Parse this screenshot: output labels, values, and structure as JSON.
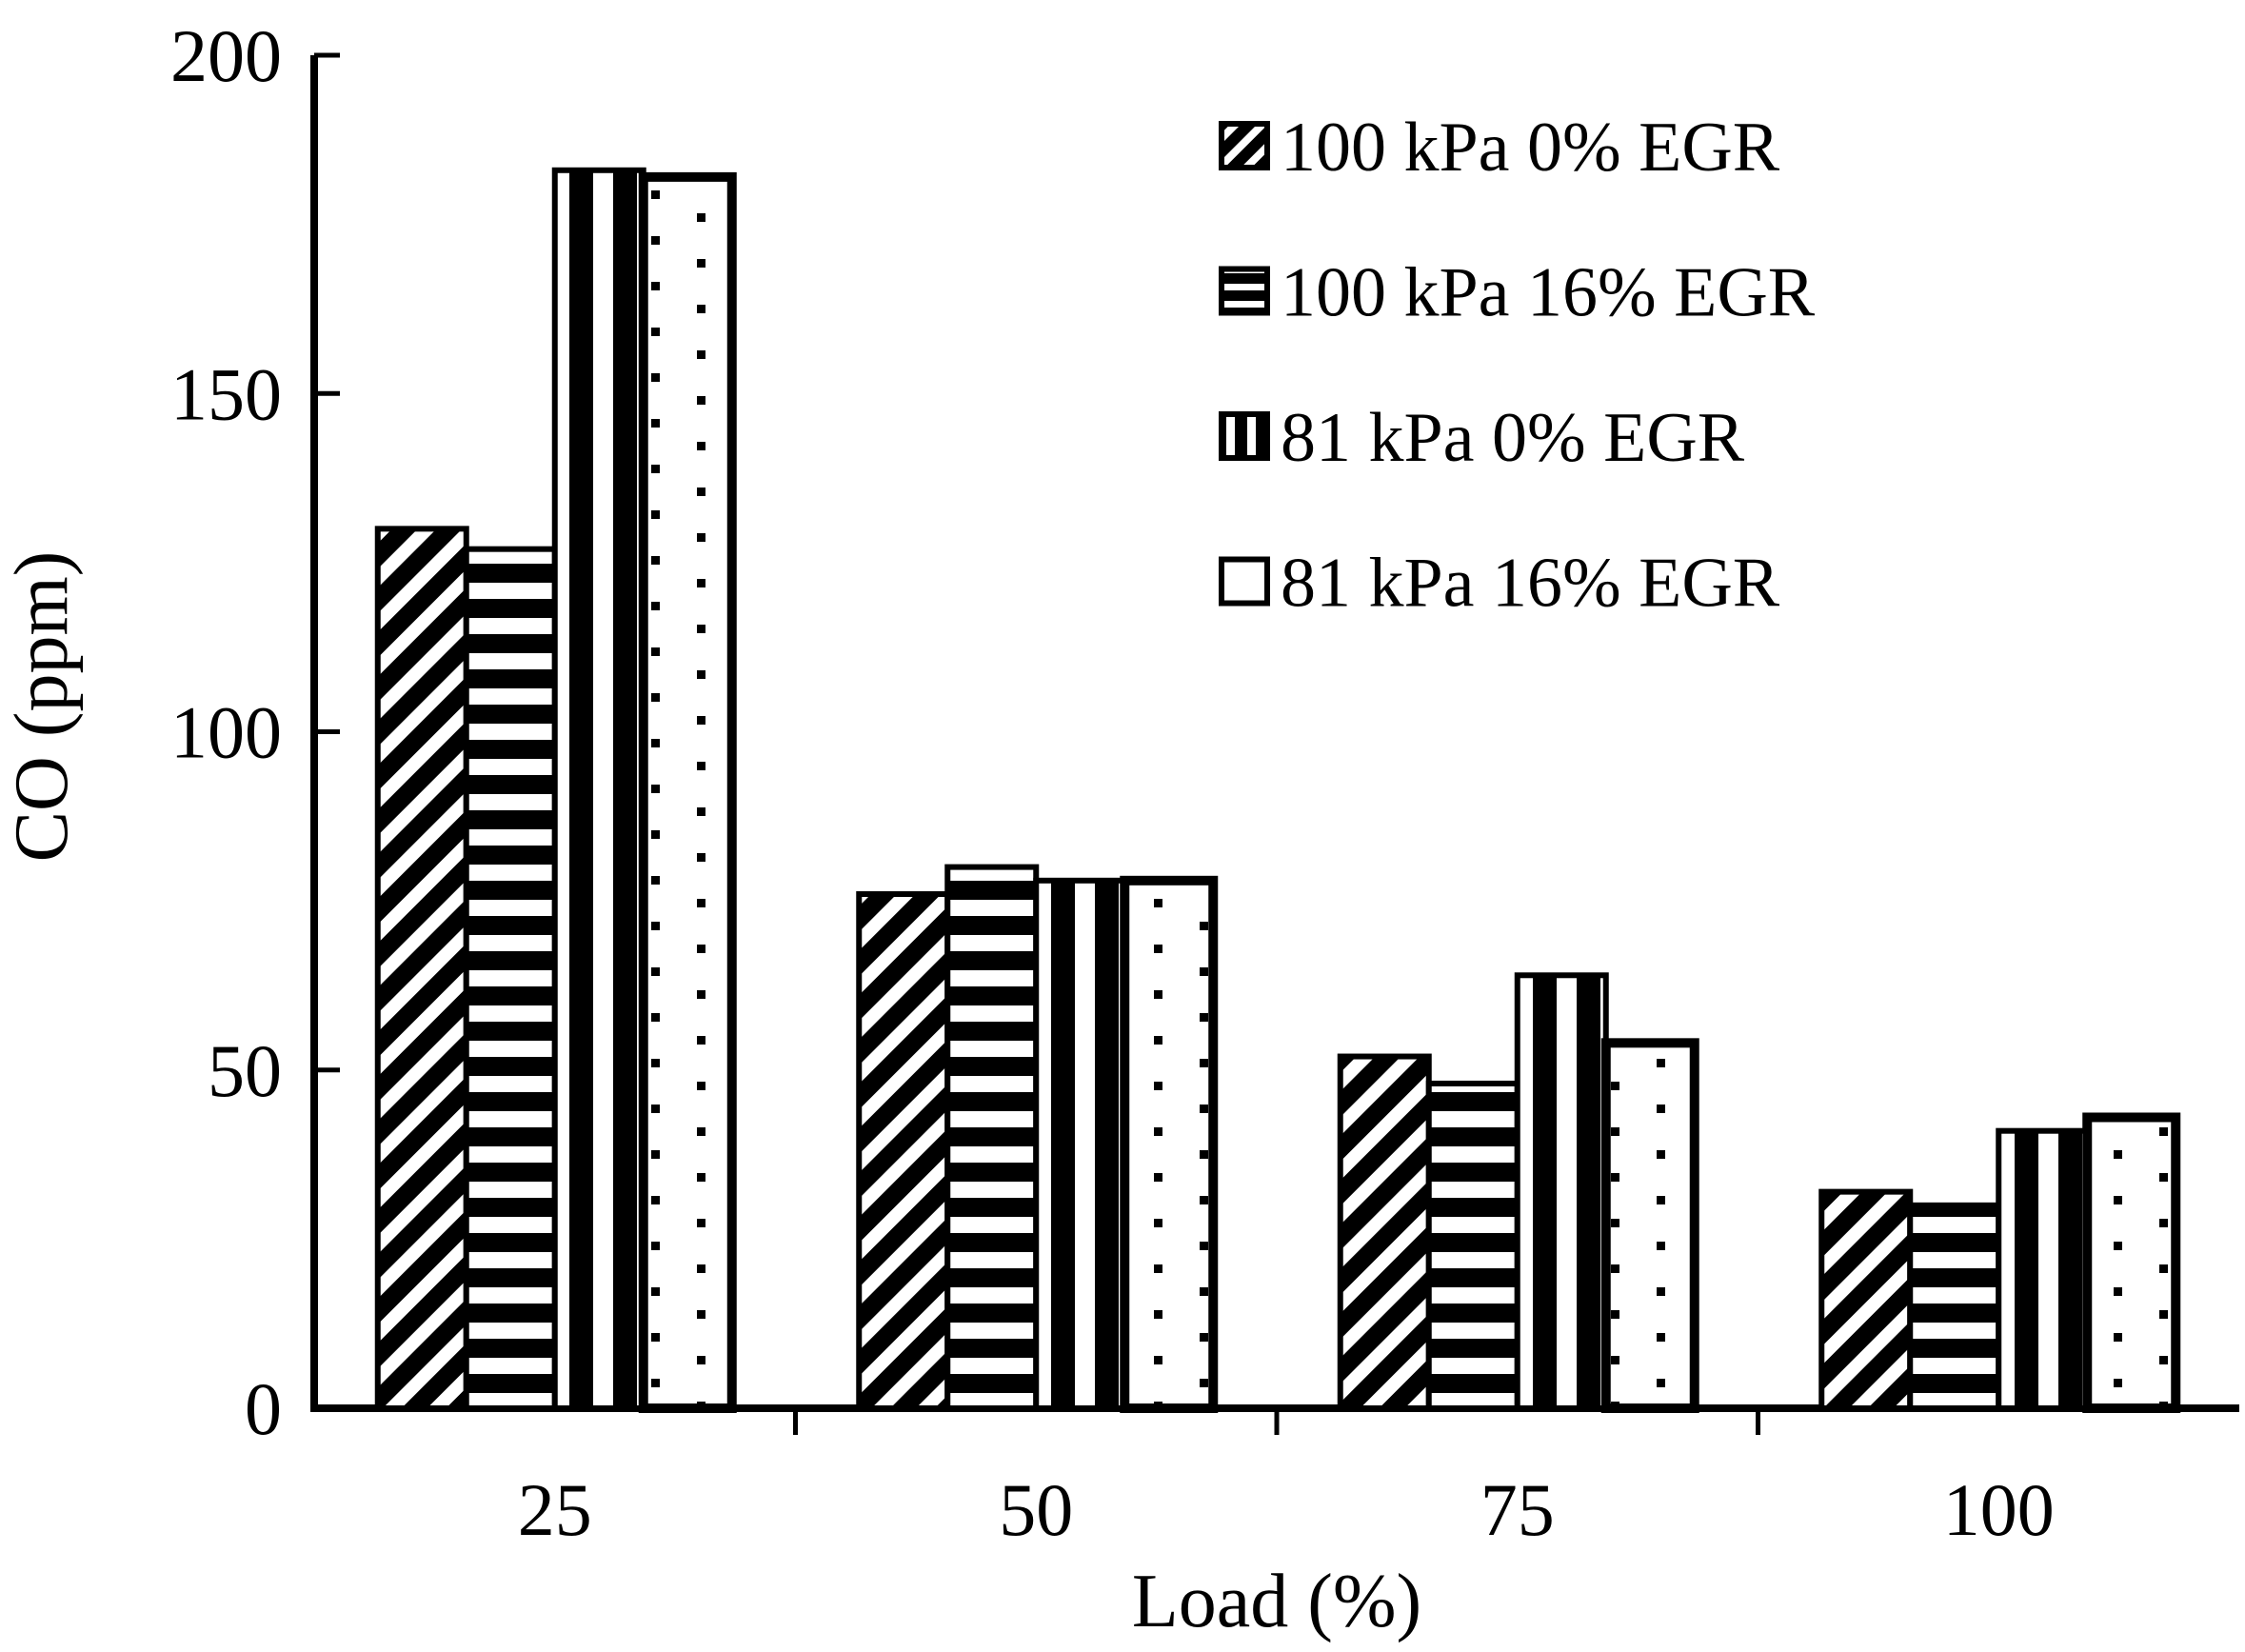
{
  "chart_data": {
    "type": "bar",
    "title": "",
    "xlabel": "Load (%)",
    "ylabel": "CO (ppm)",
    "categories": [
      "25",
      "50",
      "75",
      "100"
    ],
    "series": [
      {
        "name": "100 kPa 0% EGR",
        "pattern": "diagonal-hatch",
        "values": [
          130,
          76,
          52,
          32
        ]
      },
      {
        "name": "100 kPa 16% EGR",
        "pattern": "horizontal-stripes",
        "values": [
          127,
          80,
          48,
          30
        ]
      },
      {
        "name": "81 kPa 0% EGR",
        "pattern": "vertical-stripes",
        "values": [
          183,
          78,
          64,
          41
        ]
      },
      {
        "name": "81 kPa 16% EGR",
        "pattern": "dots",
        "values": [
          182,
          78,
          54,
          43
        ]
      }
    ],
    "ylim": [
      0,
      200
    ],
    "yticks": [
      0,
      50,
      100,
      150,
      200
    ],
    "grid": false,
    "legend_position": "upper-right",
    "colors": {
      "ink": "#000000",
      "background": "#ffffff"
    }
  }
}
